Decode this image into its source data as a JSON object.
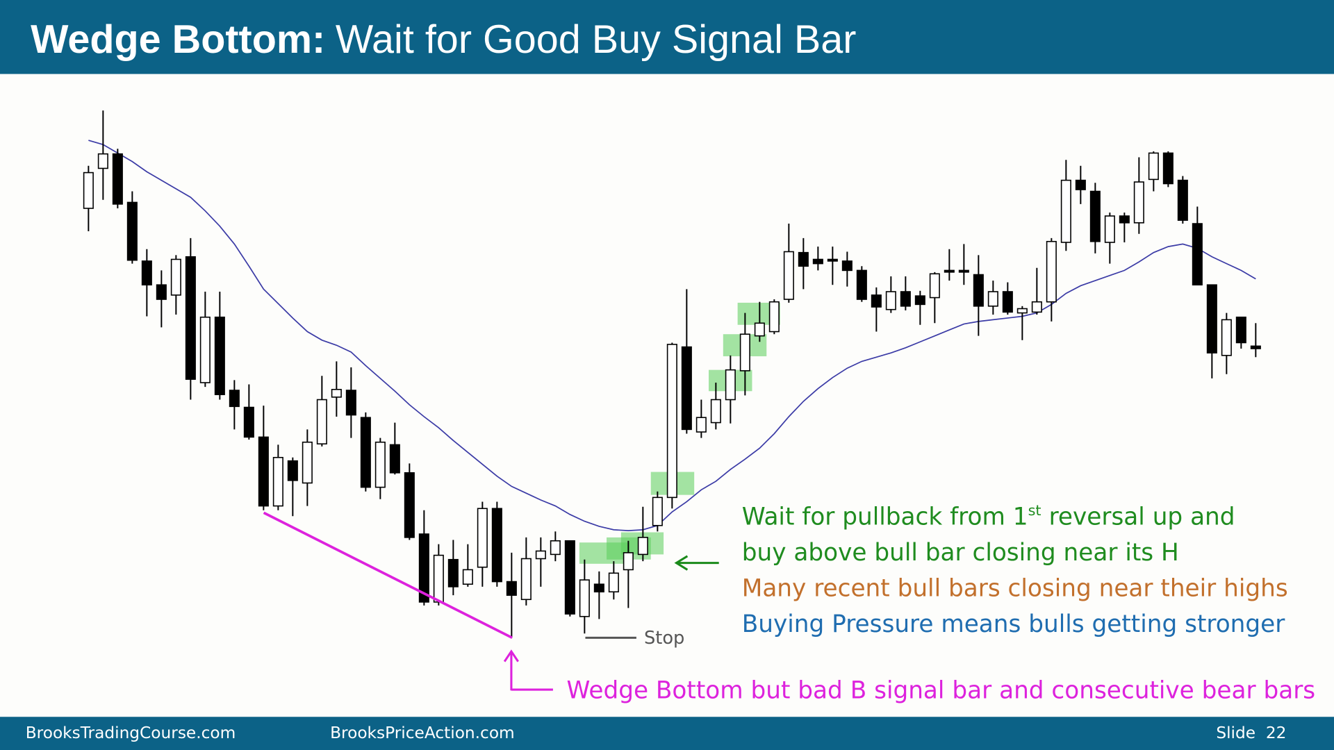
{
  "header": {
    "title_bold": "Wedge Bottom:",
    "title_rest": "Wait for Good Buy Signal Bar"
  },
  "chart_data": {
    "type": "candlestick",
    "up_color": "#ffffff",
    "down_color": "#000000",
    "open": [
      515,
      562,
      579,
      522,
      453,
      425,
      413,
      458,
      310,
      387,
      301,
      281,
      246,
      165,
      218,
      192,
      238,
      293,
      301,
      269,
      187,
      237,
      204,
      132,
      52,
      102,
      73,
      93,
      162,
      76,
      55,
      103,
      108,
      124,
      35,
      73,
      64,
      90,
      108,
      142,
      175,
      352,
      252,
      263,
      290,
      324,
      365,
      370,
      408,
      463,
      455,
      455,
      453,
      442,
      413,
      396,
      417,
      412,
      410,
      442,
      442,
      437,
      400,
      417,
      392,
      393,
      405,
      475,
      548,
      535,
      475,
      506,
      498,
      549,
      580,
      548,
      497,
      425,
      342,
      387,
      353
    ],
    "high": [
      565,
      630,
      585,
      535,
      467,
      442,
      460,
      480,
      417,
      417,
      313,
      308,
      283,
      237,
      222,
      255,
      318,
      335,
      328,
      275,
      245,
      263,
      215,
      160,
      120,
      125,
      120,
      170,
      170,
      110,
      128,
      128,
      135,
      124,
      102,
      88,
      100,
      124,
      164,
      182,
      357,
      420,
      290,
      310,
      342,
      392,
      405,
      408,
      497,
      480,
      470,
      470,
      464,
      447,
      422,
      435,
      435,
      418,
      440,
      467,
      473,
      460,
      430,
      428,
      400,
      445,
      480,
      572,
      565,
      545,
      510,
      510,
      575,
      582,
      582,
      553,
      517,
      425,
      392,
      387,
      380
    ],
    "low": [
      488,
      525,
      515,
      450,
      388,
      375,
      390,
      290,
      305,
      290,
      255,
      243,
      160,
      160,
      153,
      165,
      235,
      270,
      245,
      182,
      173,
      202,
      125,
      48,
      48,
      60,
      70,
      70,
      70,
      10,
      48,
      70,
      100,
      35,
      15,
      32,
      55,
      45,
      100,
      135,
      162,
      250,
      245,
      255,
      262,
      295,
      358,
      367,
      404,
      420,
      442,
      425,
      423,
      405,
      370,
      392,
      395,
      378,
      380,
      430,
      425,
      365,
      390,
      390,
      360,
      390,
      382,
      465,
      520,
      462,
      450,
      475,
      485,
      535,
      540,
      497,
      425,
      315,
      320,
      350,
      340
    ],
    "close": [
      557,
      579,
      520,
      454,
      425,
      408,
      455,
      314,
      387,
      296,
      282,
      246,
      165,
      222,
      195,
      240,
      290,
      302,
      272,
      187,
      240,
      204,
      128,
      52,
      107,
      70,
      90,
      162,
      76,
      60,
      103,
      112,
      124,
      38,
      78,
      64,
      86,
      110,
      128,
      175,
      355,
      255,
      269,
      290,
      325,
      367,
      380,
      405,
      464,
      447,
      450,
      453,
      442,
      408,
      399,
      417,
      400,
      402,
      438,
      440,
      440,
      400,
      417,
      393,
      397,
      405,
      476,
      548,
      537,
      476,
      506,
      498,
      546,
      580,
      544,
      501,
      425,
      345,
      384,
      357,
      350
    ],
    "ma": {
      "color": "#3b3ba6",
      "values": [
        595,
        590,
        580,
        570,
        558,
        548,
        538,
        528,
        512,
        494,
        473,
        447,
        420,
        403,
        386,
        370,
        360,
        354,
        346,
        330,
        315,
        300,
        284,
        270,
        257,
        242,
        228,
        214,
        200,
        188,
        180,
        172,
        165,
        155,
        147,
        141,
        137,
        136,
        137,
        142,
        158,
        170,
        184,
        194,
        208,
        220,
        233,
        250,
        270,
        288,
        303,
        316,
        327,
        335,
        340,
        345,
        351,
        358,
        365,
        372,
        379,
        382,
        384,
        386,
        388,
        392,
        402,
        415,
        424,
        430,
        436,
        442,
        452,
        463,
        470,
        473,
        468,
        458,
        450,
        442,
        432
      ]
    },
    "annotations": {
      "line1": {
        "text": "Wait for pullback from 1",
        "sup": "st",
        "rest": "reversal up and"
      },
      "line2": "buy above bull bar closing near its H",
      "line3": "Many recent bull bars closing near their highs",
      "line4": "Buying Pressure means bulls getting stronger",
      "wedge": "Wedge Bottom but bad B signal bar and consecutive bear bars",
      "stop": "Stop"
    }
  },
  "footer": {
    "left": "BrooksTradingCourse.com",
    "middle": "BrooksPriceAction.com",
    "right": "Slide  22"
  }
}
